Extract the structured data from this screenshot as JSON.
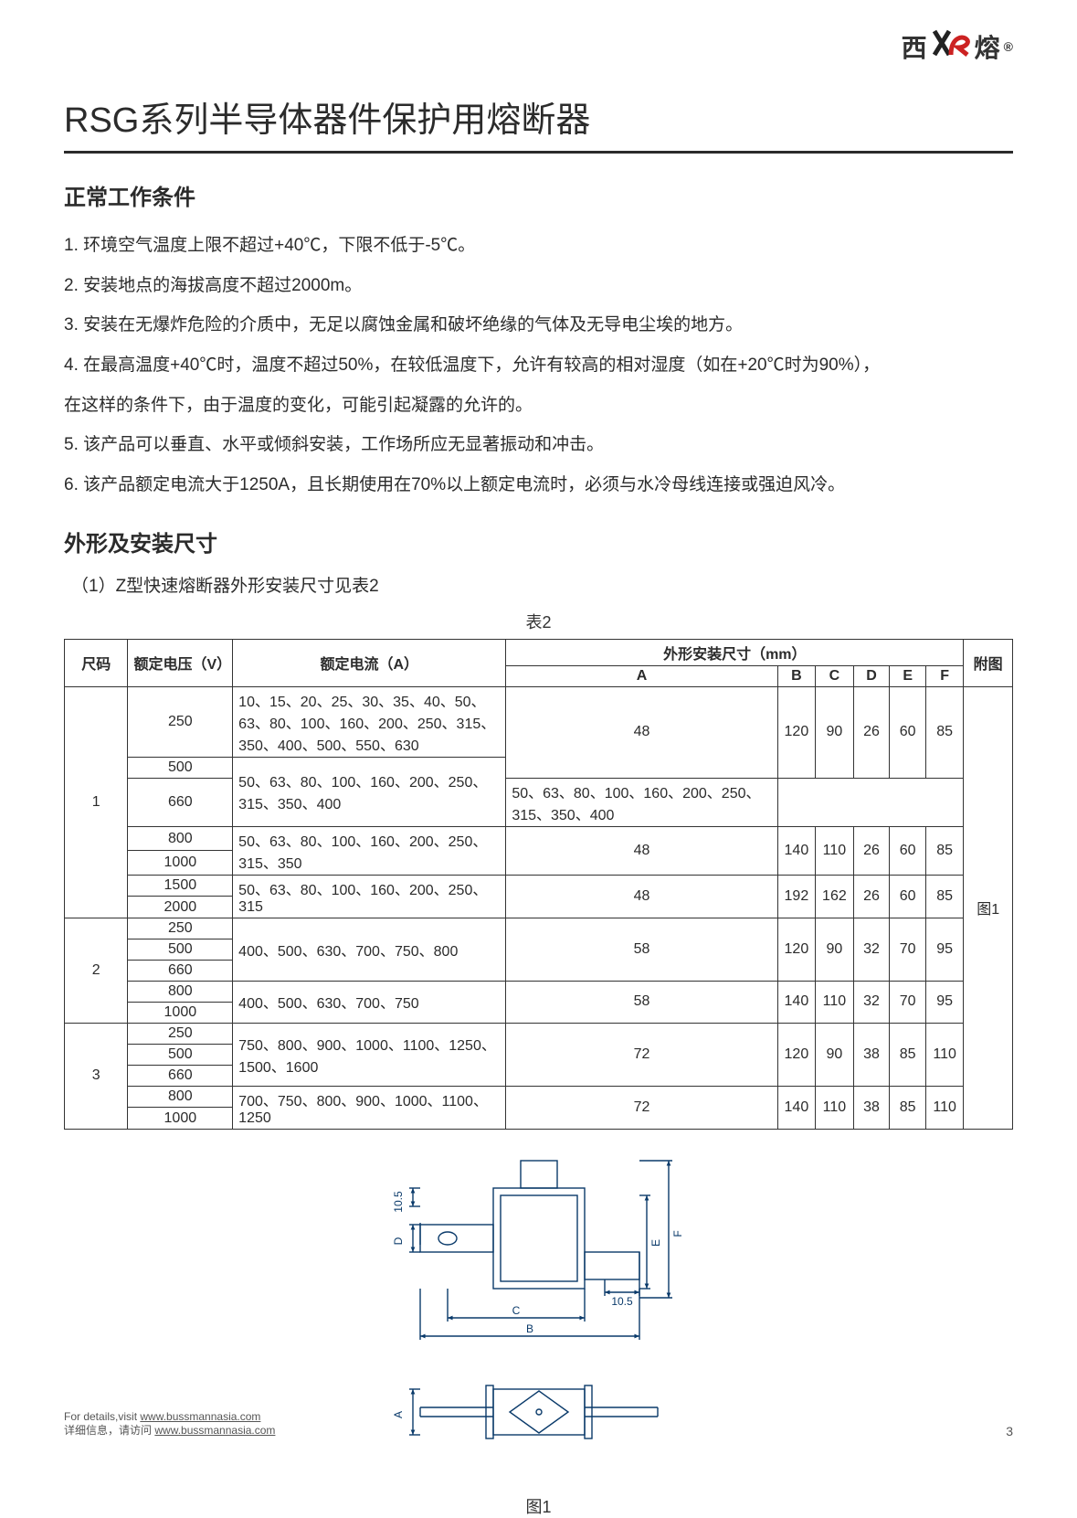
{
  "brand": {
    "xi": "西",
    "rong": "熔",
    "reg": "®"
  },
  "title": "RSG系列半导体器件保护用熔断器",
  "section1_heading": "正常工作条件",
  "conditions": [
    "1. 环境空气温度上限不超过+40℃，下限不低于-5℃。",
    "2. 安装地点的海拔高度不超过2000m。",
    "3. 安装在无爆炸危险的介质中，无足以腐蚀金属和破坏绝缘的气体及无导电尘埃的地方。",
    "4. 在最高温度+40℃时，温度不超过50%，在较低温度下，允许有较高的相对湿度（如在+20℃时为90%），",
    "在这样的条件下，由于温度的变化，可能引起凝露的允许的。",
    "5. 该产品可以垂直、水平或倾斜安装，工作场所应无显著振动和冲击。",
    "6. 该产品额定电流大于1250A，且长期使用在70%以上额定电流时，必须与水冷母线连接或强迫风冷。"
  ],
  "section2_heading": "外形及安装尺寸",
  "sub1": "（1）Z型快速熔断器外形安装尺寸见表2",
  "table_caption": "表2",
  "table": {
    "header": {
      "size": "尺码",
      "volt": "额定电压（V）",
      "curr": "额定电流（A）",
      "dims_group": "外形安装尺寸（mm）",
      "dims": [
        "A",
        "B",
        "C",
        "D",
        "E",
        "F"
      ],
      "fig": "附图"
    },
    "groups": [
      {
        "size": "1",
        "rows": [
          {
            "volt": "250",
            "curr": "10、15、20、25、30、35、40、50、63、80、100、160、200、250、315、350、400、500、550、630",
            "dims": [
              "48",
              "120",
              "90",
              "26",
              "60",
              "85"
            ],
            "dim_span": 2
          },
          {
            "volt": "500",
            "curr_merge_below": true
          },
          {
            "volt": "660",
            "curr": "50、63、80、100、160、200、250、315、350、400",
            "curr_span_up": 2
          },
          {
            "volt": "800",
            "curr_merge_below": true,
            "dims": [
              "48",
              "140",
              "110",
              "26",
              "60",
              "85"
            ],
            "dim_span": 2
          },
          {
            "volt": "1000",
            "curr": "50、63、80、100、160、200、250、315、350"
          },
          {
            "volt": "1500",
            "curr": "50、63、80、100、160、200、250、315",
            "curr_span": 2,
            "dims": [
              "48",
              "192",
              "162",
              "26",
              "60",
              "85"
            ],
            "dim_span": 2
          },
          {
            "volt": "2000"
          }
        ]
      },
      {
        "size": "2",
        "rows": [
          {
            "volt": "250",
            "curr": "400、500、630、700、750、800",
            "curr_span": 3,
            "dims": [
              "58",
              "120",
              "90",
              "32",
              "70",
              "95"
            ],
            "dim_span": 3
          },
          {
            "volt": "500"
          },
          {
            "volt": "660"
          },
          {
            "volt": "800",
            "curr_merge_below": true,
            "dims": [
              "58",
              "140",
              "110",
              "32",
              "70",
              "95"
            ],
            "dim_span": 2
          },
          {
            "volt": "1000",
            "curr": "400、500、630、700、750"
          }
        ]
      },
      {
        "size": "3",
        "rows": [
          {
            "volt": "250",
            "curr": "750、800、900、1000、1100、1250、1500、1600",
            "curr_span": 3,
            "dims": [
              "72",
              "120",
              "90",
              "38",
              "85",
              "110"
            ],
            "dim_span": 3
          },
          {
            "volt": "500"
          },
          {
            "volt": "660"
          },
          {
            "volt": "800",
            "curr_merge_below": true,
            "dims": [
              "72",
              "140",
              "110",
              "38",
              "85",
              "110"
            ],
            "dim_span": 2
          },
          {
            "volt": "1000",
            "curr": "700、750、800、900、1000、1100、1250"
          }
        ]
      }
    ],
    "fig_label_in_table": "图1"
  },
  "diagram": {
    "labels": {
      "D": "D",
      "C": "C",
      "B": "B",
      "E": "E",
      "F": "F",
      "A": "A",
      "ten5a": "10.5",
      "ten5b": "10.5"
    },
    "stroke": "#0a3a6a",
    "stroke_width": 1.4,
    "font_size": 12
  },
  "fig_caption": "图1",
  "footer": {
    "line1_prefix": "For details,visit ",
    "url": "www.bussmannasia.com",
    "line2_prefix": "详细信息，请访问"
  },
  "page_number": "3"
}
